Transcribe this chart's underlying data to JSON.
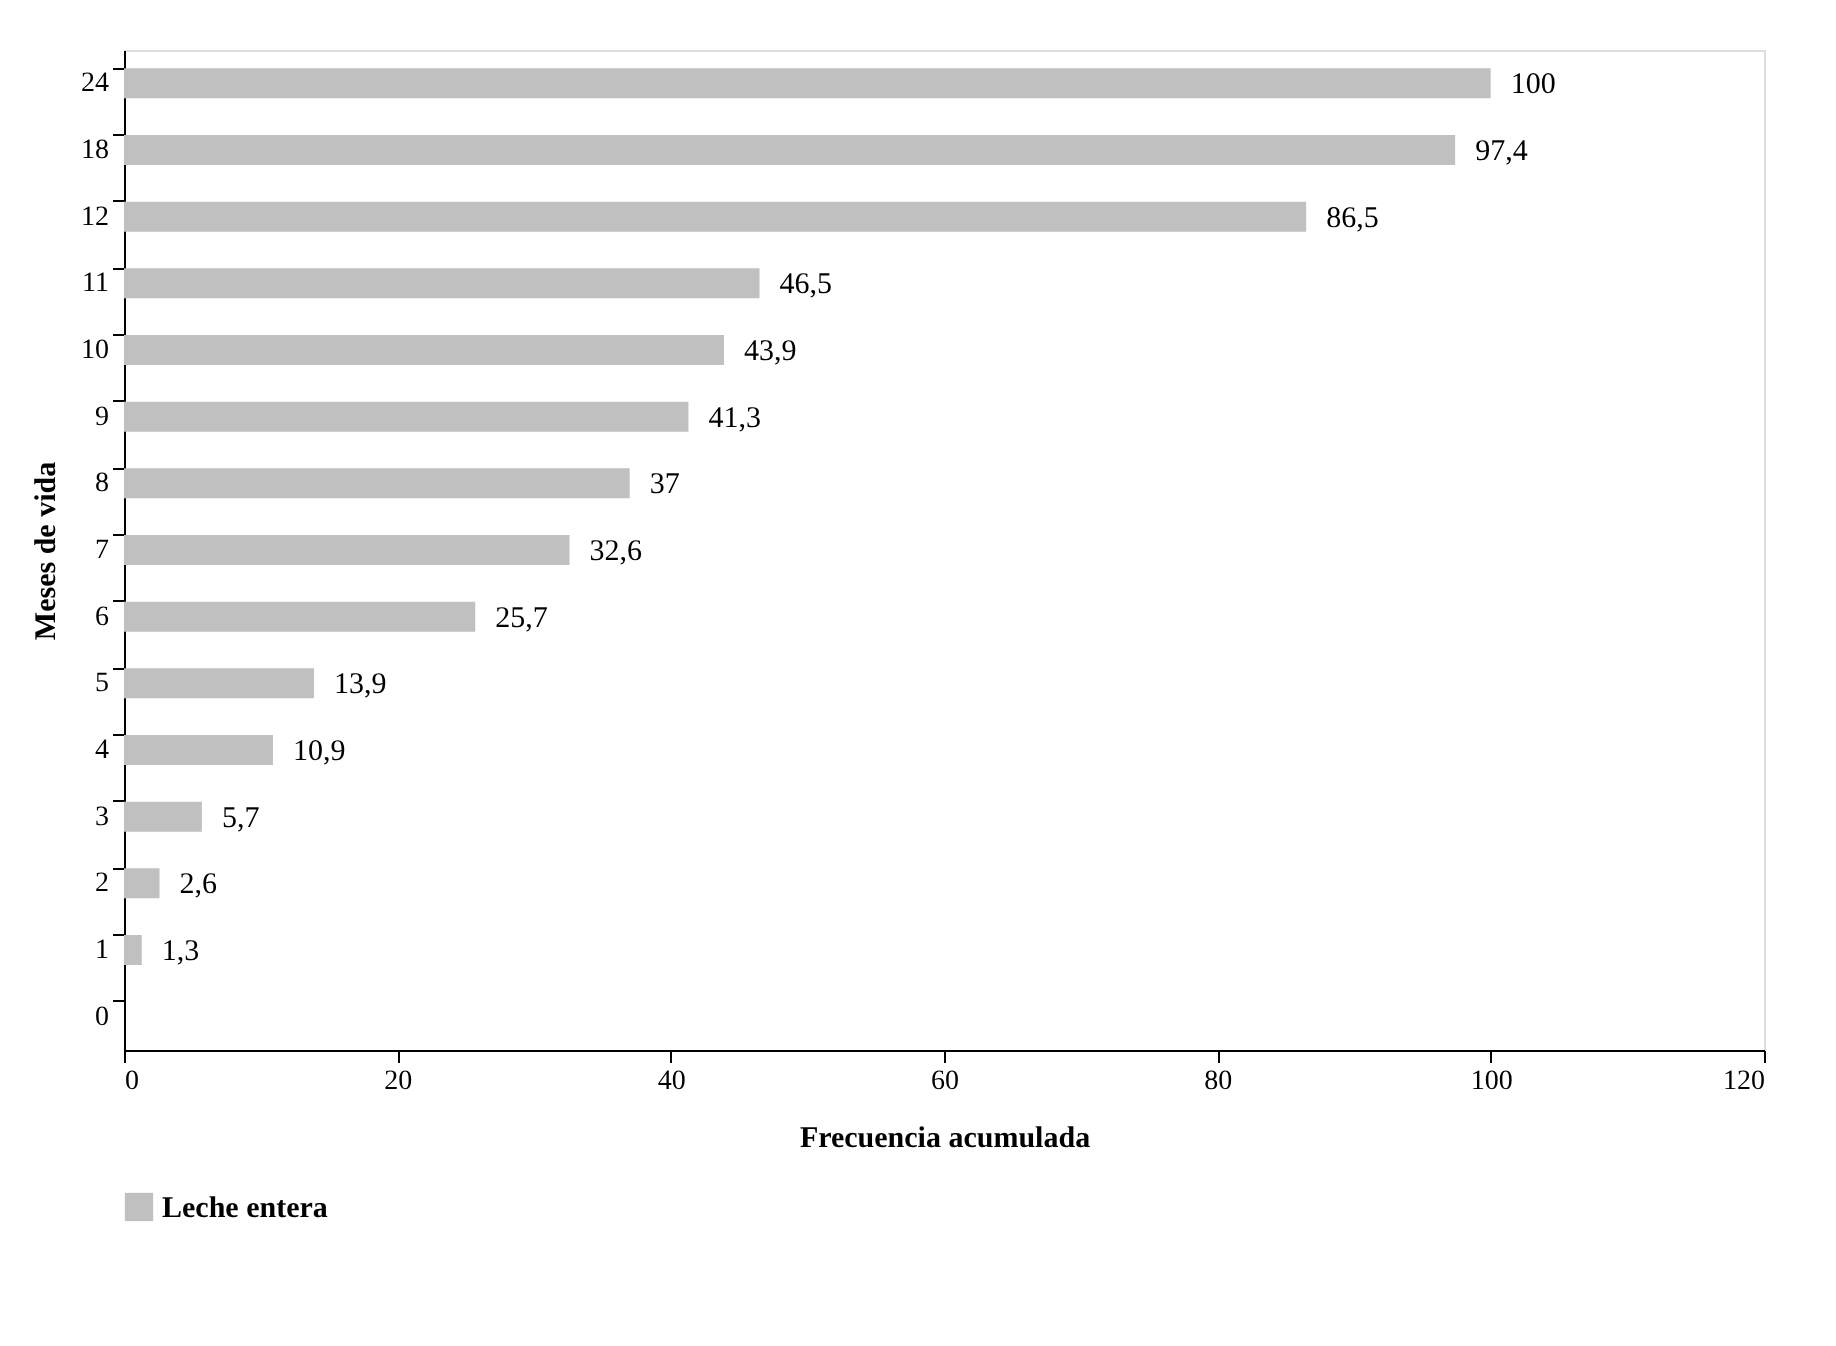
{
  "chart_data": {
    "type": "bar",
    "orientation": "horizontal",
    "xlabel": "Frecuencia acumulada",
    "ylabel": "Meses de vida",
    "categories": [
      "24",
      "18",
      "12",
      "11",
      "10",
      "9",
      "8",
      "7",
      "6",
      "5",
      "4",
      "3",
      "2",
      "1",
      "0"
    ],
    "series": [
      {
        "name": "Leche entera",
        "color": "#c0c0c0",
        "values": [
          100,
          97.4,
          86.5,
          46.5,
          43.9,
          41.3,
          37,
          32.6,
          25.7,
          13.9,
          10.9,
          5.7,
          2.6,
          1.3,
          null
        ],
        "value_labels": [
          "100",
          "97,4",
          "86,5",
          "46,5",
          "43,9",
          "41,3",
          "37",
          "32,6",
          "25,7",
          "13,9",
          "10,9",
          "5,7",
          "2,6",
          "1,3",
          null
        ]
      }
    ],
    "xlim": [
      0,
      120
    ],
    "xticks": [
      0,
      20,
      40,
      60,
      80,
      100,
      120
    ],
    "grid": false,
    "legend": "bottom"
  }
}
